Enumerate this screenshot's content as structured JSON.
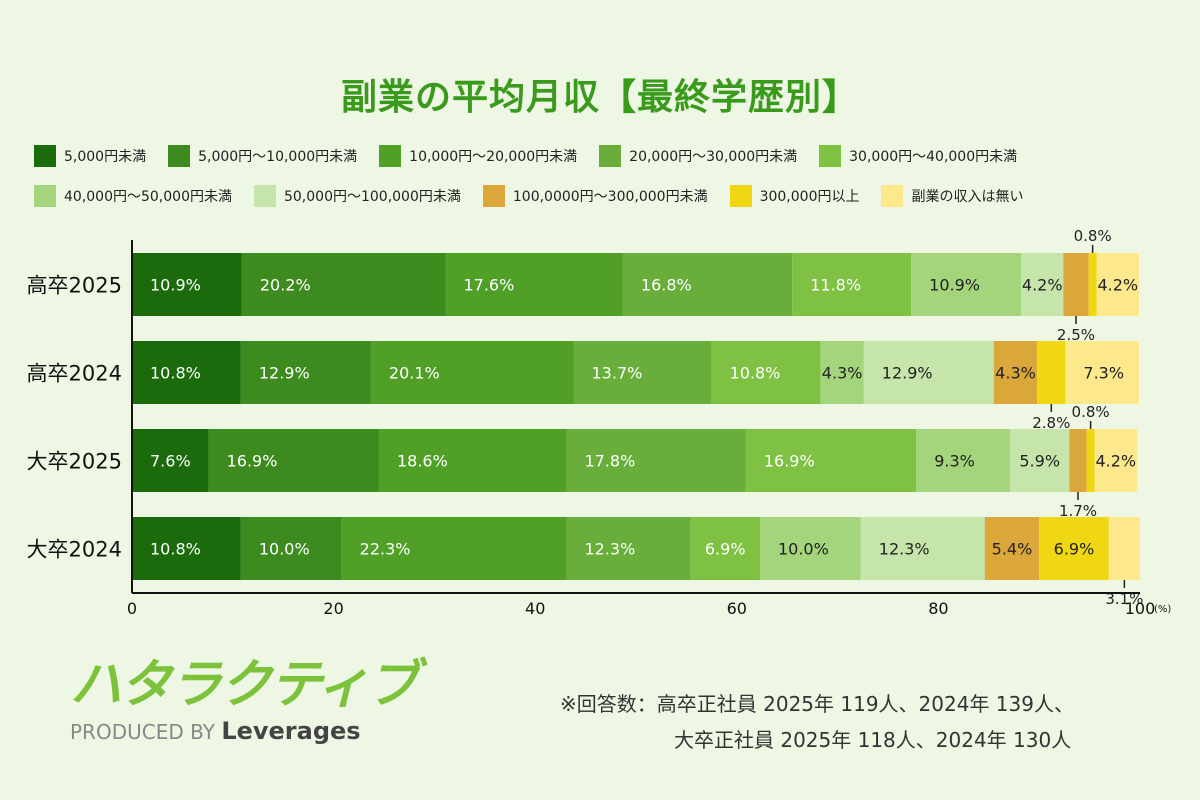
{
  "chart_data": {
    "type": "bar",
    "orientation": "horizontal",
    "stacked": true,
    "title": "副業の平均月収【最終学歴別】",
    "categories": [
      "高卒2025",
      "高卒2024",
      "大卒2025",
      "大卒2024"
    ],
    "series": [
      {
        "name": "5,000円未満",
        "color": "#1b6b0c",
        "values": [
          10.9,
          10.8,
          7.6,
          10.8
        ]
      },
      {
        "name": "5,000円～10,000円未満",
        "color": "#3d8b1e",
        "values": [
          20.2,
          12.9,
          16.9,
          10.0
        ]
      },
      {
        "name": "10,000円～20,000円未満",
        "color": "#509f27",
        "values": [
          17.6,
          20.1,
          18.6,
          22.3
        ]
      },
      {
        "name": "20,000円～30,000円未満",
        "color": "#69ae3a",
        "values": [
          16.8,
          13.7,
          17.8,
          12.3
        ]
      },
      {
        "name": "30,000円～40,000円未満",
        "color": "#7ec143",
        "values": [
          11.8,
          10.8,
          16.9,
          6.9
        ]
      },
      {
        "name": "40,000円～50,000円未満",
        "color": "#a4d47b",
        "values": [
          10.9,
          4.3,
          9.3,
          10.0
        ]
      },
      {
        "name": "50,000円～100,000円未満",
        "color": "#c6e5aa",
        "values": [
          4.2,
          12.9,
          5.9,
          12.3
        ]
      },
      {
        "name": "100,0000円～300,000円未満",
        "color": "#dba73b",
        "values": [
          2.5,
          4.3,
          1.7,
          5.4
        ]
      },
      {
        "name": "300,000円以上",
        "color": "#efd714",
        "values": [
          0.8,
          2.8,
          0.8,
          6.9
        ]
      },
      {
        "name": "副業の収入は無い",
        "color": "#fde98c",
        "values": [
          4.2,
          7.3,
          4.2,
          3.1
        ]
      }
    ],
    "xlim": [
      0,
      100
    ],
    "xticks": [
      0,
      20,
      40,
      60,
      80,
      100
    ],
    "xunit": "(%)",
    "value_suffix": "%",
    "legend_position": "top",
    "grid": false
  },
  "logo": {
    "main": "ハタラクティブ",
    "produced_by": "PRODUCED BY",
    "brand": "Leverages"
  },
  "note": {
    "line1": "※回答数：高卒正社員 2025年 119人、2024年 139人、",
    "line2": "大卒正社員 2025年 118人、2024年 130人"
  }
}
